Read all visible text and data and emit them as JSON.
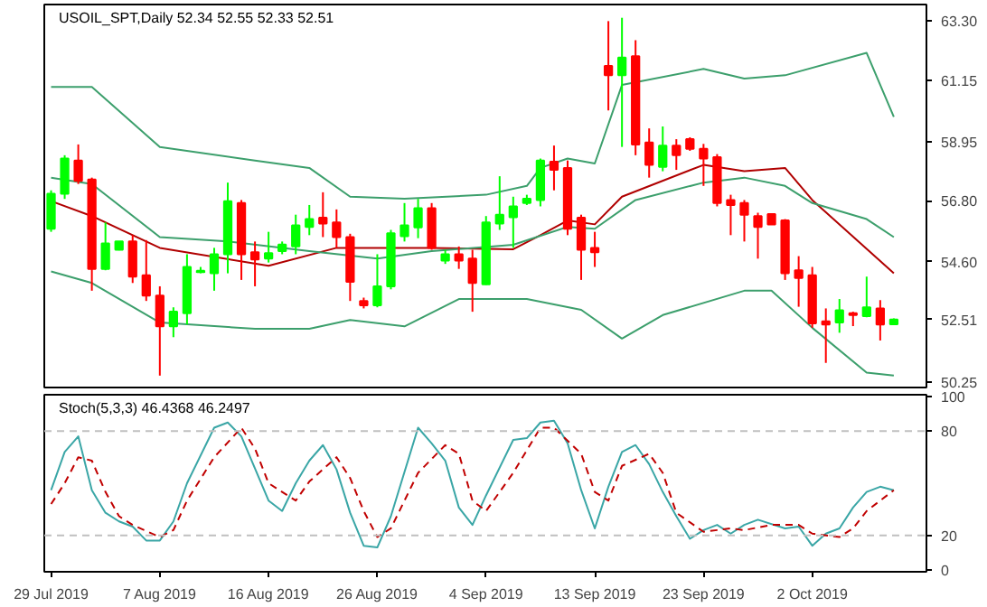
{
  "chart_data": [
    {
      "type": "candlestick",
      "title": "USOIL_SPT,Daily 52.34 52.55 52.33 52.51",
      "categories": [
        null,
        null,
        null,
        null,
        null,
        null,
        null,
        null,
        null,
        null,
        null,
        null,
        null,
        null,
        null,
        null,
        null,
        null,
        null,
        null,
        null,
        null,
        null,
        null,
        null,
        null,
        null,
        null,
        null,
        null,
        null,
        null,
        null,
        null,
        null,
        null,
        null,
        null,
        null,
        null,
        null,
        null,
        null,
        null,
        null,
        null,
        null,
        null,
        null,
        null,
        null,
        null,
        null,
        null,
        null,
        null,
        null,
        null,
        null,
        null,
        null,
        null,
        null
      ],
      "ohlc": [
        [
          55.79,
          57.18,
          55.68,
          57.06
        ],
        [
          57.06,
          58.45,
          56.87,
          58.33
        ],
        [
          58.26,
          58.84,
          57.41,
          57.52
        ],
        [
          57.57,
          57.64,
          53.55,
          54.34
        ],
        [
          54.34,
          56.02,
          54.29,
          55.26
        ],
        [
          55.03,
          55.33,
          55.01,
          55.33
        ],
        [
          55.33,
          55.56,
          53.83,
          54.06
        ],
        [
          54.11,
          55.38,
          53.18,
          53.37
        ],
        [
          53.37,
          53.71,
          50.48,
          52.26
        ],
        [
          52.26,
          52.95,
          51.87,
          52.79
        ],
        [
          52.74,
          54.87,
          52.33,
          54.41
        ],
        [
          54.22,
          54.41,
          54.18,
          54.27
        ],
        [
          54.18,
          55.1,
          53.55,
          54.87
        ],
        [
          54.87,
          57.46,
          54.18,
          56.79
        ],
        [
          56.72,
          56.83,
          53.94,
          54.87
        ],
        [
          54.94,
          55.33,
          53.71,
          54.68
        ],
        [
          54.71,
          55.68,
          54.57,
          54.91
        ],
        [
          54.98,
          55.33,
          54.87,
          55.22
        ],
        [
          55.15,
          56.3,
          54.87,
          55.91
        ],
        [
          55.86,
          56.65,
          55.56,
          56.14
        ],
        [
          56.19,
          57.11,
          55.49,
          55.98
        ],
        [
          56.02,
          56.49,
          55.1,
          55.49
        ],
        [
          55.49,
          55.61,
          53.18,
          53.87
        ],
        [
          53.18,
          53.3,
          52.91,
          53.02
        ],
        [
          53.02,
          54.87,
          52.95,
          53.71
        ],
        [
          53.71,
          55.75,
          53.6,
          55.63
        ],
        [
          55.52,
          56.72,
          55.33,
          55.91
        ],
        [
          55.84,
          56.87,
          55.45,
          56.53
        ],
        [
          56.53,
          56.72,
          55.03,
          55.1
        ],
        [
          54.64,
          55.03,
          54.52,
          54.87
        ],
        [
          54.87,
          55.15,
          54.34,
          54.64
        ],
        [
          54.71,
          55.03,
          52.79,
          53.83
        ],
        [
          53.78,
          56.25,
          53.76,
          56.02
        ],
        [
          55.98,
          57.69,
          55.75,
          56.3
        ],
        [
          56.21,
          56.95,
          55.1,
          56.6
        ],
        [
          56.72,
          57.02,
          56.65,
          56.88
        ],
        [
          56.83,
          58.33,
          56.6,
          58.26
        ],
        [
          58.22,
          58.8,
          57.18,
          57.92
        ],
        [
          57.99,
          58.26,
          55.56,
          55.79
        ],
        [
          56.19,
          56.3,
          53.94,
          55.03
        ],
        [
          55.1,
          55.68,
          54.41,
          54.94
        ],
        [
          61.68,
          63.3,
          60.07,
          61.34
        ],
        [
          61.34,
          63.42,
          58.75,
          61.98
        ],
        [
          62.03,
          62.61,
          58.45,
          58.84
        ],
        [
          58.91,
          59.42,
          57.64,
          58.1
        ],
        [
          58.03,
          59.49,
          57.87,
          58.8
        ],
        [
          58.8,
          59.03,
          57.92,
          58.45
        ],
        [
          59.03,
          59.1,
          58.61,
          58.68
        ],
        [
          58.68,
          58.86,
          57.34,
          58.33
        ],
        [
          58.38,
          58.49,
          56.6,
          56.72
        ],
        [
          56.83,
          57.02,
          55.56,
          56.65
        ],
        [
          56.72,
          56.83,
          55.33,
          56.3
        ],
        [
          56.25,
          56.37,
          54.71,
          55.86
        ],
        [
          56.32,
          56.32,
          55.95,
          55.95
        ],
        [
          56.09,
          56.14,
          53.94,
          54.18
        ],
        [
          54.29,
          54.8,
          52.97,
          54.01
        ],
        [
          54.11,
          54.41,
          52.21,
          52.37
        ],
        [
          52.44,
          52.91,
          50.94,
          52.33
        ],
        [
          52.4,
          53.25,
          52.03,
          52.84
        ],
        [
          52.74,
          52.79,
          52.27,
          52.67
        ],
        [
          52.63,
          54.06,
          52.59,
          52.95
        ],
        [
          52.91,
          53.21,
          51.75,
          52.33
        ],
        [
          52.34,
          52.55,
          52.33,
          52.51
        ]
      ],
      "colors": [
        "#00ff00",
        "#00ff00",
        "#ff0000",
        "#ff0000",
        "#00ff00",
        "#00ff00",
        "#ff0000",
        "#ff0000",
        "#ff0000",
        "#00ff00",
        "#00ff00",
        "#00ff00",
        "#00ff00",
        "#00ff00",
        "#ff0000",
        "#ff0000",
        "#00ff00",
        "#00ff00",
        "#00ff00",
        "#00ff00",
        "#ff0000",
        "#ff0000",
        "#ff0000",
        "#ff0000",
        "#00ff00",
        "#00ff00",
        "#00ff00",
        "#00ff00",
        "#ff0000",
        "#00ff00",
        "#ff0000",
        "#ff0000",
        "#00ff00",
        "#00ff00",
        "#00ff00",
        "#00ff00",
        "#00ff00",
        "#ff0000",
        "#ff0000",
        "#ff0000",
        "#ff0000",
        "#ff0000",
        "#00ff00",
        "#ff0000",
        "#ff0000",
        "#00ff00",
        "#ff0000",
        "#ff0000",
        "#ff0000",
        "#ff0000",
        "#ff0000",
        "#ff0000",
        "#ff0000",
        "#ff0000",
        "#ff0000",
        "#ff0000",
        "#ff0000",
        "#ff0000",
        "#00ff00",
        "#ff0000",
        "#00ff00",
        "#ff0000",
        "#00ff00"
      ],
      "series": [
        {
          "type": "line",
          "color": "#3c9f6c",
          "values": [
            60.92,
            null,
            null,
            60.92,
            null,
            null,
            null,
            null,
            58.75,
            null,
            null,
            null,
            null,
            null,
            null,
            58.26,
            null,
            null,
            null,
            57.99,
            null,
            null,
            56.95,
            null,
            null,
            null,
            56.88,
            null,
            null,
            null,
            null,
            null,
            57.02,
            null,
            null,
            57.34,
            57.99,
            null,
            58.33,
            null,
            58.15,
            null,
            60.99,
            null,
            null,
            null,
            null,
            null,
            61.57,
            null,
            null,
            61.22,
            null,
            null,
            61.34,
            null,
            null,
            null,
            null,
            null,
            62.15,
            null,
            59.84
          ]
        },
        {
          "type": "line",
          "color": "#b00000",
          "values": [
            56.79,
            null,
            null,
            56.25,
            null,
            null,
            null,
            null,
            55.1,
            null,
            null,
            null,
            null,
            null,
            null,
            null,
            54.45,
            null,
            null,
            null,
            null,
            55.1,
            null,
            null,
            null,
            null,
            null,
            null,
            55.1,
            null,
            null,
            null,
            null,
            null,
            55.05,
            null,
            55.56,
            null,
            56.09,
            null,
            55.95,
            null,
            56.95,
            null,
            null,
            null,
            null,
            null,
            58.1,
            null,
            null,
            57.87,
            null,
            null,
            57.99,
            null,
            56.83,
            null,
            null,
            null,
            null,
            null,
            54.18
          ]
        },
        {
          "type": "line",
          "color": "#3c9f6c",
          "values": [
            57.64,
            null,
            null,
            57.41,
            null,
            null,
            null,
            null,
            55.49,
            null,
            null,
            null,
            null,
            55.33,
            null,
            null,
            null,
            null,
            null,
            54.98,
            null,
            null,
            null,
            null,
            54.71,
            null,
            null,
            null,
            54.98,
            null,
            null,
            null,
            null,
            null,
            55.21,
            null,
            null,
            null,
            55.86,
            null,
            55.79,
            null,
            null,
            56.83,
            null,
            null,
            null,
            null,
            57.46,
            null,
            null,
            57.64,
            null,
            null,
            57.34,
            null,
            56.72,
            null,
            null,
            null,
            56.14,
            null,
            55.49
          ]
        },
        {
          "type": "line",
          "color": "#3c9f6c",
          "values": [
            54.25,
            null,
            null,
            53.83,
            null,
            null,
            null,
            null,
            52.4,
            null,
            null,
            null,
            null,
            null,
            null,
            52.17,
            null,
            null,
            null,
            52.17,
            null,
            null,
            52.49,
            null,
            null,
            null,
            52.26,
            null,
            null,
            null,
            53.25,
            null,
            null,
            null,
            null,
            53.25,
            null,
            null,
            null,
            52.86,
            null,
            null,
            51.82,
            null,
            null,
            52.67,
            null,
            null,
            null,
            null,
            null,
            53.55,
            null,
            53.55,
            null,
            null,
            52.21,
            null,
            null,
            null,
            50.59,
            null,
            50.48
          ]
        }
      ],
      "ylim": [
        50.05,
        63.9
      ],
      "yticks": [
        50.25,
        52.51,
        {
          "value": 54.6,
          "label": "54.60"
        },
        {
          "value": 56.8,
          "label": "56.80"
        },
        58.95,
        61.15,
        {
          "value": 63.3,
          "label": "63.30"
        }
      ],
      "tick_labels": "y",
      "grid": false
    },
    {
      "type": "line",
      "title": "Stoch(5,3,3) 46.4368 46.2497",
      "categories": [
        "29 Jul 2019",
        null,
        null,
        null,
        null,
        null,
        null,
        null,
        "7 Aug 2019",
        null,
        null,
        null,
        null,
        null,
        null,
        null,
        "16 Aug 2019",
        null,
        null,
        null,
        null,
        null,
        null,
        null,
        "26 Aug 2019",
        null,
        null,
        null,
        null,
        null,
        null,
        null,
        "4 Sep 2019",
        null,
        null,
        null,
        null,
        null,
        null,
        null,
        "13 Sep 2019",
        null,
        null,
        null,
        null,
        null,
        null,
        null,
        "23 Sep 2019",
        null,
        null,
        null,
        null,
        null,
        null,
        null,
        "2 Oct 2019",
        null,
        null,
        null,
        null,
        null,
        null
      ],
      "ylim": [
        -1,
        101
      ],
      "yticks": [
        0,
        20,
        80,
        100
      ],
      "grid": false,
      "ref_lines": [
        {
          "axis": "y",
          "value": 20,
          "color": "#c0c0c0",
          "line_style": "dashed"
        },
        {
          "axis": "y",
          "value": 80,
          "color": "#c0c0c0",
          "line_style": "dashed"
        }
      ],
      "series": [
        {
          "color": "#3aa6a6",
          "line_style": "solid",
          "values": [
            46,
            68,
            77,
            46,
            33,
            28,
            25,
            17,
            17,
            28,
            50,
            null,
            82,
            85,
            77,
            null,
            40,
            34,
            50,
            63,
            72,
            58,
            33,
            14,
            13,
            31,
            null,
            82,
            73,
            63,
            36,
            26,
            43,
            null,
            75,
            76,
            85,
            86,
            73,
            46,
            24,
            48,
            68,
            72,
            61,
            45,
            31,
            18,
            23,
            26,
            21,
            26,
            29,
            null,
            24,
            25,
            14,
            21,
            24,
            36,
            45,
            48,
            46
          ]
        },
        {
          "color": "#c00000",
          "line_style": "dashed",
          "values": [
            38,
            50,
            65,
            63,
            45,
            31,
            26,
            null,
            19,
            23,
            40,
            null,
            65,
            null,
            82,
            70,
            50,
            null,
            40,
            51,
            null,
            65,
            53,
            34,
            19,
            24,
            null,
            56,
            null,
            72,
            67,
            40,
            34,
            null,
            56,
            null,
            82,
            82,
            null,
            67,
            45,
            40,
            60,
            null,
            67,
            56,
            33,
            null,
            22,
            23,
            24,
            23,
            null,
            26,
            null,
            26,
            21,
            null,
            19,
            24,
            34,
            null,
            46
          ]
        }
      ]
    }
  ]
}
